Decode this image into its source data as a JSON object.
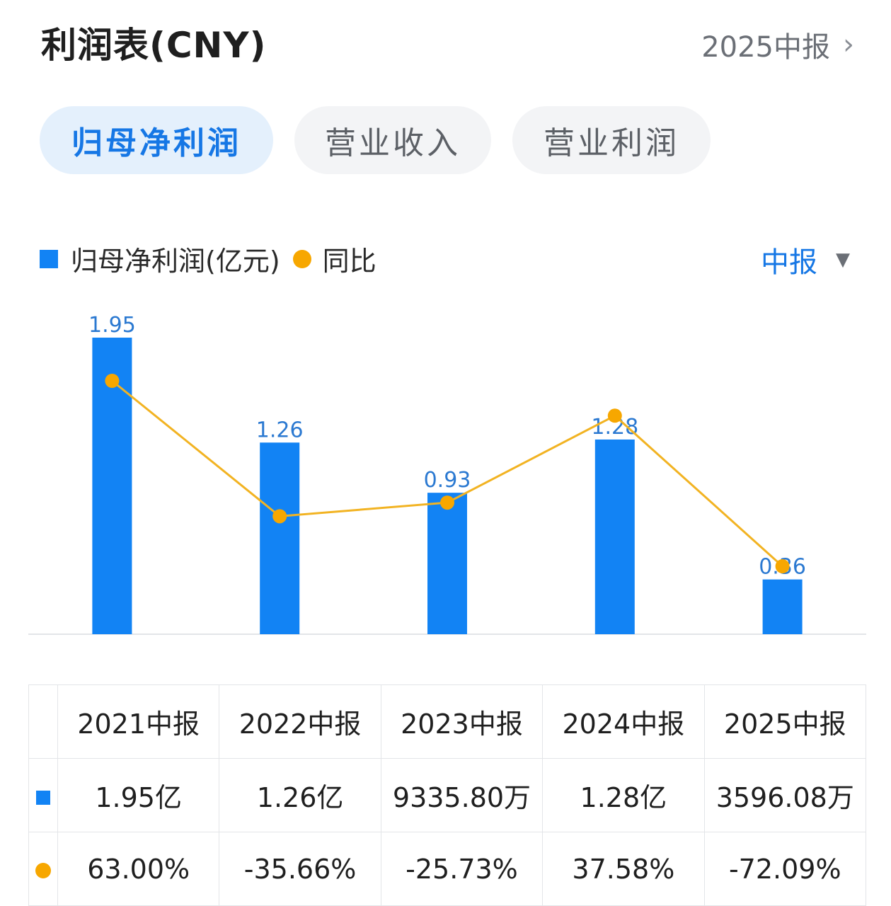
{
  "header": {
    "title": "利润表(CNY)",
    "period": "2025中报"
  },
  "tabs": [
    {
      "label": "归母净利润",
      "active": true
    },
    {
      "label": "营业收入",
      "active": false
    },
    {
      "label": "营业利润",
      "active": false
    }
  ],
  "legend": {
    "series1": "归母净利润(亿元)",
    "series2": "同比"
  },
  "report_select": {
    "label": "中报"
  },
  "chart_data": {
    "type": "bar",
    "categories": [
      "2021中报",
      "2022中报",
      "2023中报",
      "2024中报",
      "2025中报"
    ],
    "series": [
      {
        "name": "归母净利润(亿元)",
        "type": "bar",
        "values": [
          1.95,
          1.26,
          0.93,
          1.28,
          0.36
        ],
        "labels": [
          "1.95",
          "1.26",
          "0.93",
          "1.28",
          "0.36"
        ]
      },
      {
        "name": "同比",
        "type": "line",
        "values": [
          63.0,
          -35.66,
          -25.73,
          37.58,
          -72.09
        ]
      }
    ],
    "colors": {
      "bar": "#1283f4",
      "line": "#f2b322",
      "dot": "#f7a700"
    },
    "legend_position": "top-left"
  },
  "table": {
    "headers": [
      "2021中报",
      "2022中报",
      "2023中报",
      "2024中报",
      "2025中报"
    ],
    "profit": [
      "1.95亿",
      "1.26亿",
      "9335.80万",
      "1.28亿",
      "3596.08万"
    ],
    "yoy": [
      "63.00%",
      "-35.66%",
      "-25.73%",
      "37.58%",
      "-72.09%"
    ]
  },
  "colors": {
    "positive": "#e5383b",
    "negative": "#1aa35b",
    "accent": "#1677e5"
  }
}
